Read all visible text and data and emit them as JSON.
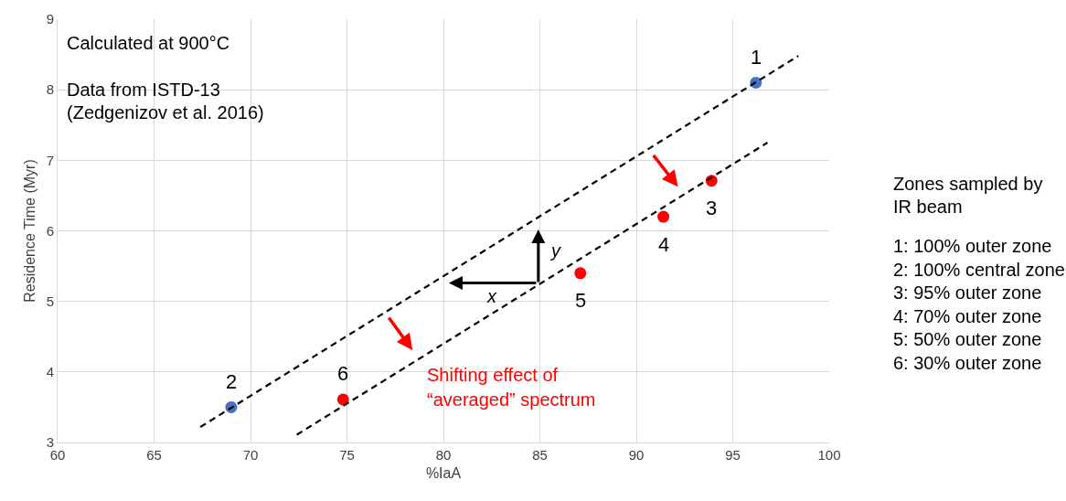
{
  "chart_data": {
    "type": "scatter",
    "xlabel": "%IaA",
    "ylabel": "Residence Time (Myr)",
    "xlim": [
      60,
      100
    ],
    "xticks": [
      60,
      65,
      70,
      75,
      80,
      85,
      90,
      95,
      100
    ],
    "ylim": [
      3,
      9
    ],
    "yticks": [
      3,
      4,
      5,
      6,
      7,
      8,
      9
    ],
    "grid": true,
    "series": [
      {
        "x": [
          96.2,
          69.0,
          93.9,
          91.4,
          87.1,
          74.8
        ],
        "values": [
          8.1,
          3.5,
          6.71,
          6.2,
          5.4,
          3.61
        ],
        "colors": [
          "#4472c4",
          "#4472c4",
          "#ff0000",
          "#ff0000",
          "#ff0000",
          "#ff0000"
        ],
        "marker": "circle"
      },
      {
        "type": "line",
        "x": [
          67.4,
          98.4
        ],
        "values": [
          3.22,
          8.48
        ],
        "color": "#000000",
        "line_style": "dashed"
      },
      {
        "type": "line",
        "x": [
          72.4,
          96.8
        ],
        "values": [
          3.11,
          7.25
        ],
        "color": "#000000",
        "line_style": "dashed"
      }
    ],
    "annotations": [
      "Calculated at 900°C",
      "Data from ISTD-13",
      "(Zedgenizov et al. 2016)",
      "Zones sampled by",
      "IR beam",
      "1: 100% outer zone",
      "2: 100% central zone",
      "3: 95% outer zone",
      "4: 70% outer zone",
      "5: 50% outer zone",
      "6: 30% outer zone",
      "1",
      "2",
      "3",
      "4",
      "5",
      "6",
      "Shifting effect of",
      "“averaged” spectrum",
      "x",
      "y"
    ]
  }
}
